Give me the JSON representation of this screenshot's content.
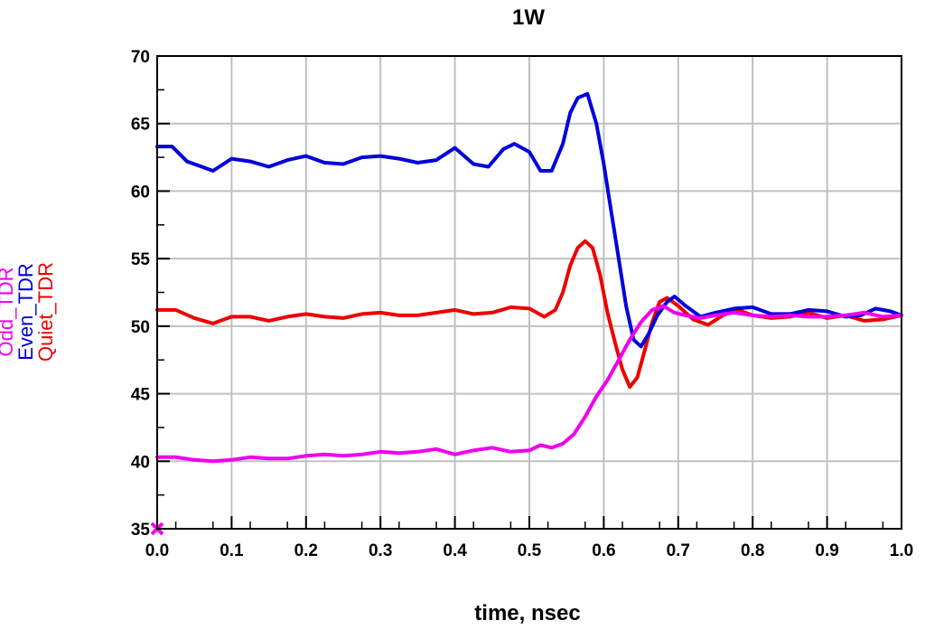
{
  "chart_data": {
    "type": "line",
    "title": "1W",
    "xlabel": "time, nsec",
    "ylabels": [
      "Odd_TDR",
      "Even_TDR",
      "Quiet_TDR"
    ],
    "xlim": [
      0.0,
      1.0
    ],
    "ylim": [
      35,
      70
    ],
    "x_ticks": [
      "0.0",
      "0.1",
      "0.2",
      "0.3",
      "0.4",
      "0.5",
      "0.6",
      "0.7",
      "0.8",
      "0.9",
      "1.0"
    ],
    "y_ticks": [
      "35",
      "40",
      "45",
      "50",
      "55",
      "60",
      "65",
      "70"
    ],
    "grid": true,
    "marker": {
      "x": 0.0,
      "y": 35.0,
      "symbol": "x",
      "color": "#ee00ee"
    },
    "series": [
      {
        "name": "Odd_TDR",
        "color": "#ee00ee",
        "points": [
          [
            0.0,
            40.3
          ],
          [
            0.025,
            40.3
          ],
          [
            0.05,
            40.1
          ],
          [
            0.075,
            40.0
          ],
          [
            0.1,
            40.1
          ],
          [
            0.125,
            40.3
          ],
          [
            0.15,
            40.2
          ],
          [
            0.175,
            40.2
          ],
          [
            0.2,
            40.4
          ],
          [
            0.225,
            40.5
          ],
          [
            0.25,
            40.4
          ],
          [
            0.275,
            40.5
          ],
          [
            0.3,
            40.7
          ],
          [
            0.325,
            40.6
          ],
          [
            0.35,
            40.7
          ],
          [
            0.375,
            40.9
          ],
          [
            0.4,
            40.5
          ],
          [
            0.425,
            40.8
          ],
          [
            0.45,
            41.0
          ],
          [
            0.475,
            40.7
          ],
          [
            0.5,
            40.8
          ],
          [
            0.515,
            41.2
          ],
          [
            0.53,
            41.0
          ],
          [
            0.545,
            41.3
          ],
          [
            0.56,
            42.0
          ],
          [
            0.575,
            43.3
          ],
          [
            0.59,
            44.8
          ],
          [
            0.605,
            46.0
          ],
          [
            0.62,
            47.5
          ],
          [
            0.635,
            49.0
          ],
          [
            0.65,
            50.3
          ],
          [
            0.665,
            51.2
          ],
          [
            0.68,
            51.5
          ],
          [
            0.695,
            51.0
          ],
          [
            0.71,
            50.8
          ],
          [
            0.73,
            50.6
          ],
          [
            0.75,
            50.8
          ],
          [
            0.775,
            51.0
          ],
          [
            0.8,
            50.8
          ],
          [
            0.825,
            50.7
          ],
          [
            0.85,
            50.8
          ],
          [
            0.875,
            50.7
          ],
          [
            0.9,
            50.7
          ],
          [
            0.925,
            50.8
          ],
          [
            0.95,
            51.0
          ],
          [
            0.975,
            50.7
          ],
          [
            1.0,
            50.8
          ]
        ]
      },
      {
        "name": "Even_TDR",
        "color": "#0000dd",
        "points": [
          [
            0.0,
            63.3
          ],
          [
            0.02,
            63.3
          ],
          [
            0.04,
            62.2
          ],
          [
            0.06,
            61.8
          ],
          [
            0.075,
            61.5
          ],
          [
            0.1,
            62.4
          ],
          [
            0.125,
            62.2
          ],
          [
            0.15,
            61.8
          ],
          [
            0.175,
            62.3
          ],
          [
            0.2,
            62.6
          ],
          [
            0.225,
            62.1
          ],
          [
            0.25,
            62.0
          ],
          [
            0.275,
            62.5
          ],
          [
            0.3,
            62.6
          ],
          [
            0.325,
            62.4
          ],
          [
            0.35,
            62.1
          ],
          [
            0.375,
            62.3
          ],
          [
            0.4,
            63.2
          ],
          [
            0.425,
            62.0
          ],
          [
            0.445,
            61.8
          ],
          [
            0.465,
            63.1
          ],
          [
            0.48,
            63.5
          ],
          [
            0.5,
            62.9
          ],
          [
            0.515,
            61.5
          ],
          [
            0.53,
            61.5
          ],
          [
            0.545,
            63.5
          ],
          [
            0.555,
            65.8
          ],
          [
            0.565,
            66.9
          ],
          [
            0.578,
            67.2
          ],
          [
            0.59,
            65.0
          ],
          [
            0.6,
            62.0
          ],
          [
            0.61,
            58.5
          ],
          [
            0.62,
            55.0
          ],
          [
            0.63,
            51.5
          ],
          [
            0.64,
            49.0
          ],
          [
            0.65,
            48.5
          ],
          [
            0.66,
            49.4
          ],
          [
            0.672,
            50.8
          ],
          [
            0.685,
            51.8
          ],
          [
            0.695,
            52.2
          ],
          [
            0.71,
            51.5
          ],
          [
            0.73,
            50.7
          ],
          [
            0.75,
            51.0
          ],
          [
            0.775,
            51.3
          ],
          [
            0.8,
            51.4
          ],
          [
            0.825,
            50.9
          ],
          [
            0.85,
            50.9
          ],
          [
            0.875,
            51.2
          ],
          [
            0.9,
            51.1
          ],
          [
            0.925,
            50.7
          ],
          [
            0.945,
            50.8
          ],
          [
            0.965,
            51.3
          ],
          [
            0.985,
            51.1
          ],
          [
            1.0,
            50.8
          ]
        ]
      },
      {
        "name": "Quiet_TDR",
        "color": "#ee0000",
        "points": [
          [
            0.0,
            51.2
          ],
          [
            0.025,
            51.2
          ],
          [
            0.05,
            50.6
          ],
          [
            0.075,
            50.2
          ],
          [
            0.1,
            50.7
          ],
          [
            0.125,
            50.7
          ],
          [
            0.15,
            50.4
          ],
          [
            0.175,
            50.7
          ],
          [
            0.2,
            50.9
          ],
          [
            0.225,
            50.7
          ],
          [
            0.25,
            50.6
          ],
          [
            0.275,
            50.9
          ],
          [
            0.3,
            51.0
          ],
          [
            0.325,
            50.8
          ],
          [
            0.35,
            50.8
          ],
          [
            0.375,
            51.0
          ],
          [
            0.4,
            51.2
          ],
          [
            0.425,
            50.9
          ],
          [
            0.45,
            51.0
          ],
          [
            0.475,
            51.4
          ],
          [
            0.5,
            51.3
          ],
          [
            0.52,
            50.7
          ],
          [
            0.535,
            51.2
          ],
          [
            0.545,
            52.5
          ],
          [
            0.555,
            54.5
          ],
          [
            0.565,
            55.8
          ],
          [
            0.575,
            56.3
          ],
          [
            0.585,
            55.8
          ],
          [
            0.595,
            53.8
          ],
          [
            0.605,
            51.0
          ],
          [
            0.615,
            48.8
          ],
          [
            0.625,
            46.8
          ],
          [
            0.635,
            45.5
          ],
          [
            0.645,
            46.2
          ],
          [
            0.655,
            48.2
          ],
          [
            0.665,
            50.3
          ],
          [
            0.675,
            51.8
          ],
          [
            0.685,
            52.1
          ],
          [
            0.7,
            51.5
          ],
          [
            0.72,
            50.5
          ],
          [
            0.74,
            50.1
          ],
          [
            0.76,
            50.8
          ],
          [
            0.78,
            51.2
          ],
          [
            0.8,
            50.8
          ],
          [
            0.825,
            50.6
          ],
          [
            0.85,
            50.7
          ],
          [
            0.875,
            51.0
          ],
          [
            0.9,
            50.6
          ],
          [
            0.925,
            50.8
          ],
          [
            0.95,
            50.4
          ],
          [
            0.975,
            50.5
          ],
          [
            1.0,
            50.8
          ]
        ]
      }
    ]
  }
}
